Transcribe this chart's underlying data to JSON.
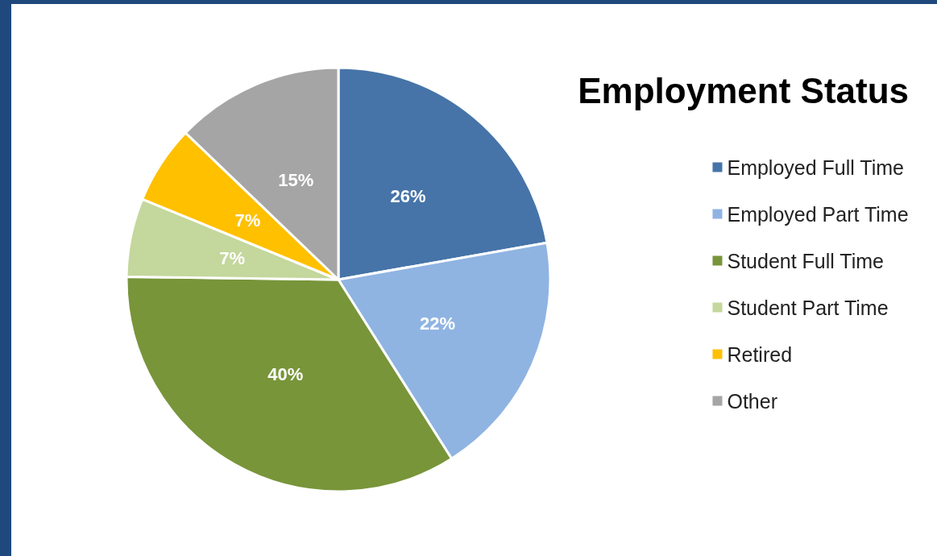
{
  "chart_data": {
    "type": "pie",
    "title": "Employment Status",
    "categories": [
      "Employed Full Time",
      "Employed Part Time",
      "Student Full Time",
      "Student Part Time",
      "Retired",
      "Other"
    ],
    "values": [
      26,
      22,
      40,
      7,
      7,
      15
    ],
    "value_labels": [
      "26%",
      "22%",
      "40%",
      "7%",
      "7%",
      "15%"
    ],
    "colors": [
      "#4674a8",
      "#8fb4e2",
      "#78953a",
      "#c4d79c",
      "#ffc000",
      "#a5a5a5"
    ],
    "legend": "right"
  }
}
